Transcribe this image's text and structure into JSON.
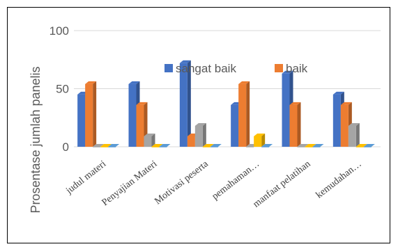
{
  "chart_data": {
    "type": "bar",
    "categories": [
      "judul materi",
      "Penyajian Materi",
      "Motivasi peserta",
      "pemahaman…",
      "manfaat pelatihan",
      "kemudahan…"
    ],
    "series": [
      {
        "name": "sangat baik",
        "color": "#4472C4",
        "values": [
          45,
          54,
          72,
          36,
          63,
          45
        ]
      },
      {
        "name": "baik",
        "color": "#ED7D31",
        "values": [
          54,
          36,
          9,
          54,
          36,
          36
        ]
      },
      {
        "color": "#A5A5A5",
        "values": [
          0,
          9,
          18,
          0,
          0,
          18
        ]
      },
      {
        "color": "#FFC000",
        "values": [
          0,
          0,
          0,
          9,
          0,
          0
        ]
      },
      {
        "color": "#5B9BD5",
        "values": [
          0,
          0,
          0,
          0,
          0,
          0
        ]
      }
    ],
    "ylim": [
      0,
      100
    ],
    "yticks": [
      "0",
      "50",
      "100"
    ],
    "ylabel": "Prosentase jumlah panelis",
    "legend_position": "top-center",
    "grid": true
  }
}
